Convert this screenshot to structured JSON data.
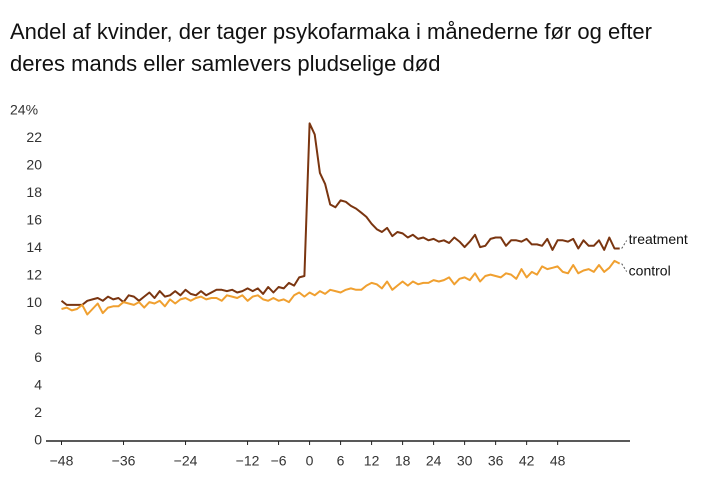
{
  "chart_data": {
    "type": "line",
    "title": "Andel af kvinder, der tager psykofarmaka i månederne før og efter deres mands eller samlevers pludselige død",
    "x": [
      -48,
      -47,
      -46,
      -45,
      -44,
      -43,
      -42,
      -41,
      -40,
      -39,
      -38,
      -37,
      -36,
      -35,
      -34,
      -33,
      -32,
      -31,
      -30,
      -29,
      -28,
      -27,
      -26,
      -25,
      -24,
      -23,
      -22,
      -21,
      -20,
      -19,
      -18,
      -17,
      -16,
      -15,
      -14,
      -13,
      -12,
      -11,
      -10,
      -9,
      -8,
      -7,
      -6,
      -5,
      -4,
      -3,
      -2,
      -1,
      0,
      1,
      2,
      3,
      4,
      5,
      6,
      7,
      8,
      9,
      10,
      11,
      12,
      13,
      14,
      15,
      16,
      17,
      18,
      19,
      20,
      21,
      22,
      23,
      24,
      25,
      26,
      27,
      28,
      29,
      30,
      31,
      32,
      33,
      34,
      35,
      36,
      37,
      38,
      39,
      40,
      41,
      42,
      43,
      44,
      45,
      46,
      47,
      48,
      49,
      50,
      51,
      52,
      53,
      54,
      55,
      56,
      57,
      58,
      59,
      60
    ],
    "series": [
      {
        "name": "treatment",
        "color": "#7a3510",
        "values": [
          10.2,
          9.9,
          9.9,
          9.9,
          9.9,
          10.2,
          10.3,
          10.4,
          10.2,
          10.5,
          10.3,
          10.4,
          10.1,
          10.6,
          10.5,
          10.2,
          10.5,
          10.8,
          10.4,
          10.9,
          10.5,
          10.6,
          10.9,
          10.6,
          11.0,
          10.7,
          10.6,
          10.9,
          10.6,
          10.8,
          11.0,
          11.0,
          10.9,
          11.0,
          10.8,
          10.9,
          11.1,
          10.9,
          11.1,
          10.7,
          11.2,
          10.8,
          11.2,
          11.1,
          11.5,
          11.3,
          11.9,
          12.0,
          23.1,
          22.3,
          19.5,
          18.7,
          17.2,
          17.0,
          17.5,
          17.4,
          17.1,
          16.9,
          16.6,
          16.3,
          15.8,
          15.4,
          15.2,
          15.5,
          14.9,
          15.2,
          15.1,
          14.8,
          15.0,
          14.7,
          14.8,
          14.6,
          14.7,
          14.5,
          14.6,
          14.4,
          14.8,
          14.5,
          14.1,
          14.5,
          15.0,
          14.1,
          14.2,
          14.7,
          14.8,
          14.8,
          14.2,
          14.6,
          14.6,
          14.5,
          14.7,
          14.3,
          14.3,
          14.2,
          14.7,
          13.9,
          14.6,
          14.6,
          14.5,
          14.7,
          14.0,
          14.6,
          14.2,
          14.2,
          14.6,
          13.9,
          14.8,
          14.0,
          14.0
        ]
      },
      {
        "name": "control",
        "color": "#f0a030",
        "values": [
          9.6,
          9.7,
          9.5,
          9.6,
          9.9,
          9.2,
          9.6,
          10.0,
          9.3,
          9.7,
          9.8,
          9.8,
          10.1,
          10.0,
          9.9,
          10.1,
          9.7,
          10.1,
          10.0,
          10.2,
          9.8,
          10.3,
          10.0,
          10.3,
          10.4,
          10.2,
          10.4,
          10.5,
          10.3,
          10.4,
          10.4,
          10.2,
          10.6,
          10.5,
          10.4,
          10.6,
          10.2,
          10.5,
          10.6,
          10.3,
          10.2,
          10.4,
          10.2,
          10.3,
          10.1,
          10.6,
          10.8,
          10.5,
          10.8,
          10.6,
          10.9,
          10.7,
          11.0,
          10.9,
          10.8,
          11.0,
          11.1,
          11.0,
          11.0,
          11.3,
          11.5,
          11.4,
          11.1,
          11.6,
          11.0,
          11.3,
          11.6,
          11.3,
          11.6,
          11.4,
          11.5,
          11.5,
          11.7,
          11.6,
          11.7,
          11.9,
          11.4,
          11.8,
          11.9,
          11.7,
          12.2,
          11.6,
          12.0,
          12.1,
          12.0,
          11.9,
          12.2,
          12.1,
          11.8,
          12.5,
          11.9,
          12.3,
          12.1,
          12.7,
          12.5,
          12.6,
          12.7,
          12.3,
          12.2,
          12.8,
          12.2,
          12.4,
          12.5,
          12.3,
          12.8,
          12.3,
          12.6,
          13.1,
          12.9
        ]
      }
    ],
    "xlim": [
      -51,
      62
    ],
    "ylim": [
      0,
      24
    ],
    "xticks": [
      {
        "value": -48,
        "label": "−48"
      },
      {
        "value": -36,
        "label": "−36"
      },
      {
        "value": -24,
        "label": "−24"
      },
      {
        "value": -12,
        "label": "−12"
      },
      {
        "value": -6,
        "label": "−6"
      },
      0,
      6,
      12,
      18,
      24,
      30,
      36,
      42,
      48
    ],
    "yticks": [
      0,
      2,
      4,
      6,
      8,
      10,
      12,
      14,
      16,
      18,
      20,
      22,
      {
        "value": 24,
        "label": "24%"
      }
    ],
    "grid": false
  }
}
